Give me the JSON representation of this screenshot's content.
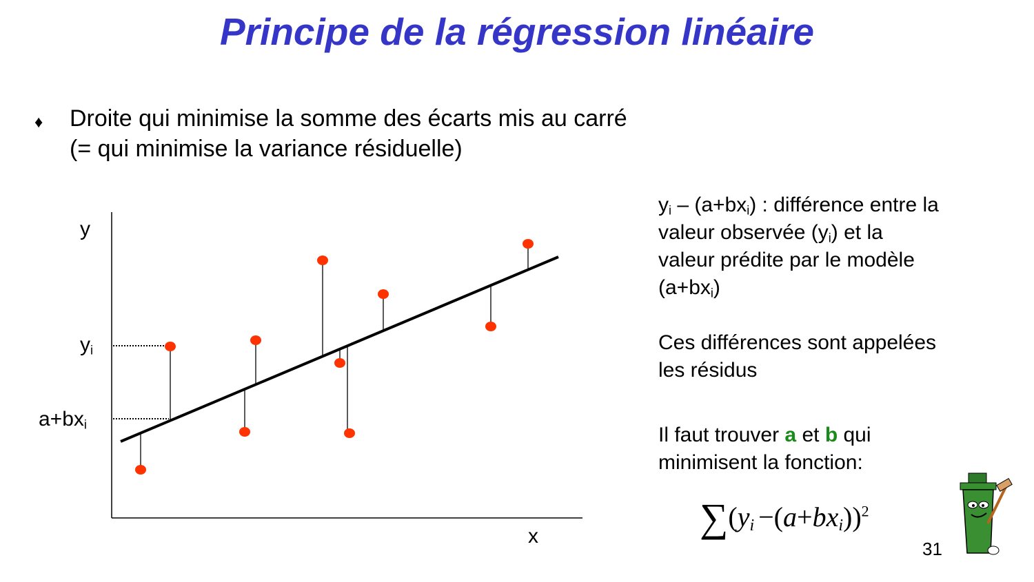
{
  "title": "Principe de la régression linéaire",
  "bullet": {
    "symbol": "♦",
    "lines": [
      "Droite qui minimise la somme des écarts mis au carré",
      "(= qui minimise la variance résiduelle)"
    ]
  },
  "diagram": {
    "y_axis_label": "y",
    "x_axis_label": "x",
    "yi_label": [
      "y",
      "i"
    ],
    "fit_label": [
      "a+bx",
      "i"
    ]
  },
  "explanation": {
    "definition": [
      [
        "y",
        "i",
        " – (a+bx",
        "i",
        ") : différence entre la"
      ],
      [
        "valeur observée (y",
        "i",
        ") et la"
      ],
      [
        "valeur prédite par le modèle"
      ],
      [
        "(a+bx",
        "i",
        ")"
      ]
    ],
    "residuals": [
      [
        "Ces différences sont appelées"
      ],
      [
        "les résidus"
      ]
    ],
    "goal": [
      [
        "Il faut trouver ",
        "a",
        " et ",
        "b",
        " qui"
      ],
      [
        "minimisent la fonction:"
      ]
    ]
  },
  "formula": {
    "sum": "∑",
    "open": "(",
    "y": "y",
    "sub1": "i",
    "minus": "−(",
    "a": "a",
    "plus": "+",
    "bx": "bx",
    "sub2": "i",
    "close": "))",
    "exp": "2"
  },
  "page_number": "31"
}
